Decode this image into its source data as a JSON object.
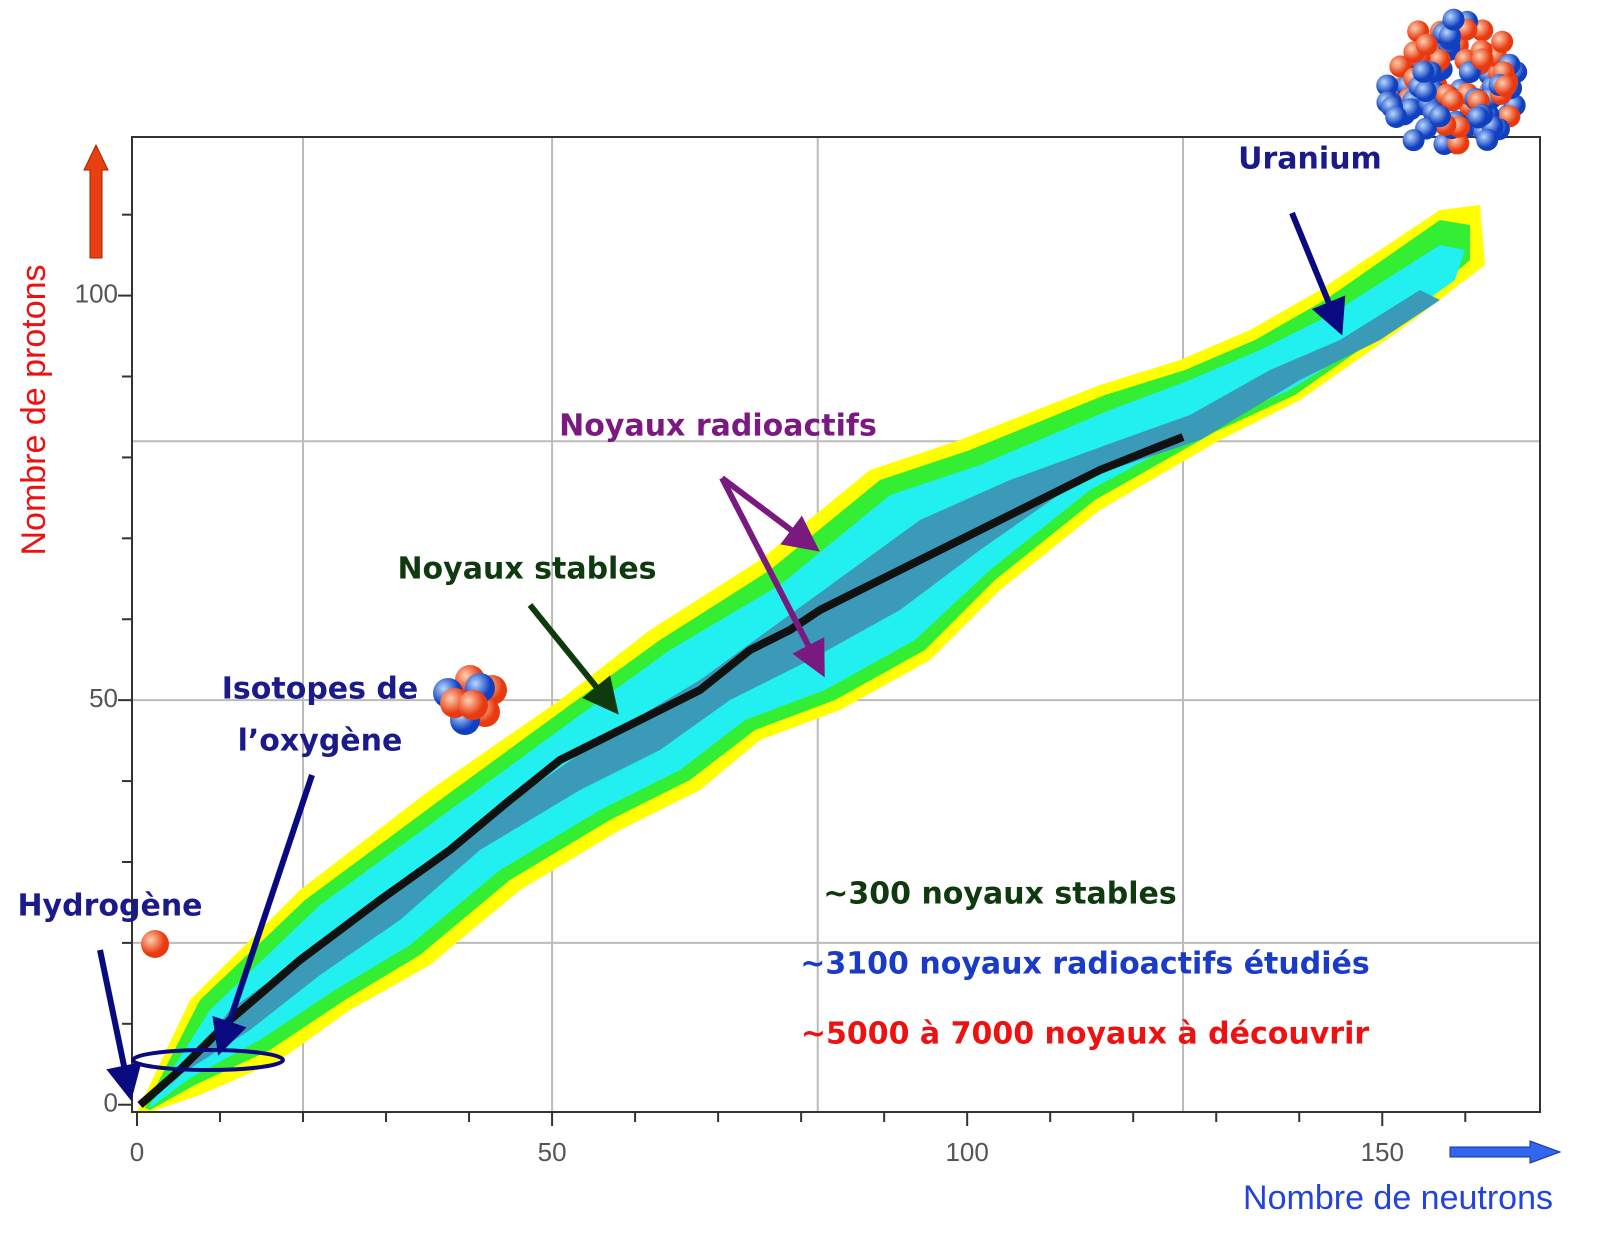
{
  "chart_data": {
    "type": "nuclide-chart",
    "x_label": "Nombre de neutrons",
    "y_label": "Nombre de protons",
    "xlim": [
      -0.6,
      169
    ],
    "ylim": [
      -0.9,
      119.6
    ],
    "xticks": [
      0,
      50,
      100,
      150
    ],
    "yticks": [
      0,
      50,
      100
    ],
    "x_minor_ticks": [
      10,
      20,
      30,
      40,
      60,
      70,
      80,
      90,
      110,
      120,
      130,
      140,
      160
    ],
    "y_minor_ticks": [
      10,
      20,
      30,
      40,
      60,
      70,
      80,
      90,
      110
    ],
    "x_grid": [
      20,
      50,
      82,
      126
    ],
    "y_grid": [
      20,
      50,
      82
    ],
    "annotations": {
      "uranium": "Uranium",
      "radioactive": "Noyaux radioactifs",
      "stable": "Noyaux stables",
      "oxygen_1": "Isotopes de",
      "oxygen_2": "l’oxygène",
      "hydrogen": "Hydrogène"
    },
    "summary": [
      "~300 noyaux stables",
      "~3100 noyaux radioactifs étudiés",
      "~5000 à 7000 noyaux à découvrir"
    ]
  }
}
